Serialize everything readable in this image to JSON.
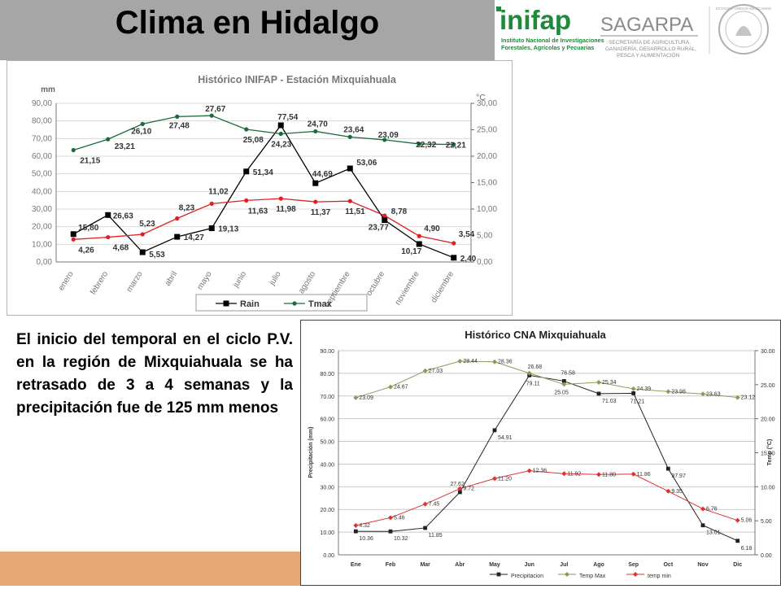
{
  "slide": {
    "title": "Clima en Hidalgo",
    "body": "El inicio del temporal en el ciclo P.V. en la región de Mixquiahuala se ha retrasado de 3 a 4 semanas y la precipitación fue de 125 mm menos"
  },
  "logos": {
    "inifap_name": "inifap",
    "inifap_sub1": "Instituto Nacional de Investigaciones",
    "inifap_sub2": "Forestales, Agrícolas y Pecuarias",
    "sagarpa_name": "SAGARPA",
    "sagarpa_sub1": "SECRETARÍA DE AGRICULTURA,",
    "sagarpa_sub2": "GANADERÍA, DESARROLLO RURAL,",
    "sagarpa_sub3": "PESCA Y ALIMENTACIÓN",
    "seal_text": "ESTADOS UNIDOS MEXICANOS"
  },
  "colors": {
    "header_gray": "#a6a6a6",
    "bottom_orange": "#e7a878",
    "rain": "#000000",
    "tmax1": "#1b6b3a",
    "tmin1": "#e02020",
    "tmax2": "#8c9a58",
    "tmin2": "#e03030"
  },
  "chart_data": [
    {
      "type": "line",
      "title": "Histórico INIFAP  - Estación Mixquiahuala",
      "ylabel": "mm",
      "y2label": "°C",
      "ylim": [
        0,
        90
      ],
      "y2lim": [
        0,
        30
      ],
      "yticks": [
        "0,00",
        "10,00",
        "20,00",
        "30,00",
        "40,00",
        "50,00",
        "60,00",
        "70,00",
        "80,00",
        "90,00"
      ],
      "y2ticks": [
        "0,00",
        "5,00",
        "10,00",
        "15,00",
        "20,00",
        "25,00",
        "30,00"
      ],
      "categories": [
        "enero",
        "febrero",
        "marzo",
        "abril",
        "mayo",
        "junio",
        "julio",
        "agosto",
        "septiembre",
        "octubre",
        "noviembre",
        "diciembre"
      ],
      "grid": "horizontal",
      "legend_position": "bottom",
      "series": [
        {
          "name": "Rain",
          "axis": "left",
          "values": [
            15.8,
            26.63,
            5.53,
            14.27,
            19.13,
            51.34,
            77.54,
            44.69,
            53.06,
            23.77,
            10.17,
            2.4
          ],
          "labels": [
            "15,80",
            "26,63",
            "5,53",
            "14,27",
            "19,13",
            "51,34",
            "77,54",
            "44,69",
            "53,06",
            "23,77",
            "10,17",
            "2,40"
          ]
        },
        {
          "name": "Tmax",
          "axis": "right",
          "values": [
            21.15,
            23.21,
            26.1,
            27.48,
            27.67,
            25.08,
            24.23,
            24.7,
            23.64,
            23.09,
            22.32,
            22.21
          ],
          "labels": [
            "21,15",
            "23,21",
            "26,10",
            "27,48",
            "27,67",
            "25,08",
            "24,23",
            "24,70",
            "23,64",
            "23,09",
            "22,32",
            "22,21"
          ]
        },
        {
          "axis": "right",
          "values": [
            4.26,
            4.68,
            5.23,
            8.23,
            11.02,
            11.63,
            11.98,
            11.37,
            11.51,
            8.78,
            4.9,
            3.54
          ],
          "labels": [
            "4,26",
            "4,68",
            "5,23",
            "8,23",
            "11,02",
            "11,63",
            "11,98",
            "11,37",
            "11,51",
            "8,78",
            "4,90",
            "3,54"
          ]
        }
      ]
    },
    {
      "type": "line",
      "title": "Histórico CNA  Mixquiahuala",
      "ylabel": "Precipitación (mm)",
      "y2label": "Temp (°C)",
      "ylim": [
        0,
        90
      ],
      "y2lim": [
        0,
        30
      ],
      "yticks": [
        "0.00",
        "10.00",
        "20.00",
        "30.00",
        "40.00",
        "50.00",
        "60.00",
        "70.00",
        "80.00",
        "90.00"
      ],
      "y2ticks": [
        "0.00",
        "5.00",
        "10.00",
        "15.00",
        "20.00",
        "25.00",
        "30.00"
      ],
      "categories": [
        "Ene",
        "Feb",
        "Mar",
        "Abr",
        "May",
        "Jun",
        "Jul",
        "Ago",
        "Sep",
        "Oct",
        "Nov",
        "Dic"
      ],
      "grid": "horizontal",
      "legend_position": "bottom",
      "series": [
        {
          "name": "Precipitacion",
          "axis": "left",
          "values": [
            10.36,
            10.32,
            11.85,
            27.62,
            54.91,
            79.11,
            76.58,
            71.03,
            71.21,
            37.97,
            13.01,
            6.18
          ],
          "labels": [
            "10.36",
            "10.32",
            "11.85",
            "27.62",
            "54.91",
            "79.11",
            "76.58",
            "71.03",
            "71.21",
            "37.97",
            "13.01",
            "6.18"
          ]
        },
        {
          "name": "Temp Max",
          "axis": "right",
          "values": [
            23.09,
            24.67,
            27.03,
            28.44,
            28.36,
            26.68,
            25.05,
            25.34,
            24.39,
            23.98,
            23.63,
            23.12
          ],
          "labels": [
            "23.09",
            "24.67",
            "27.03",
            "28.44",
            "28.36",
            "26.68",
            "25.05",
            "25.34",
            "24.39",
            "23.98",
            "23.63",
            "23.12"
          ]
        },
        {
          "name": "temp min",
          "axis": "right",
          "values": [
            4.32,
            5.46,
            7.45,
            9.72,
            11.2,
            12.36,
            11.92,
            11.8,
            11.86,
            9.35,
            6.76,
            5.06
          ],
          "labels": [
            "4.32",
            "5.46",
            "7.45",
            "9.72",
            "11.20",
            "12.36",
            "11.92",
            "11.80",
            "11.86",
            "9.35",
            "6.76",
            "5.06"
          ]
        }
      ]
    }
  ]
}
